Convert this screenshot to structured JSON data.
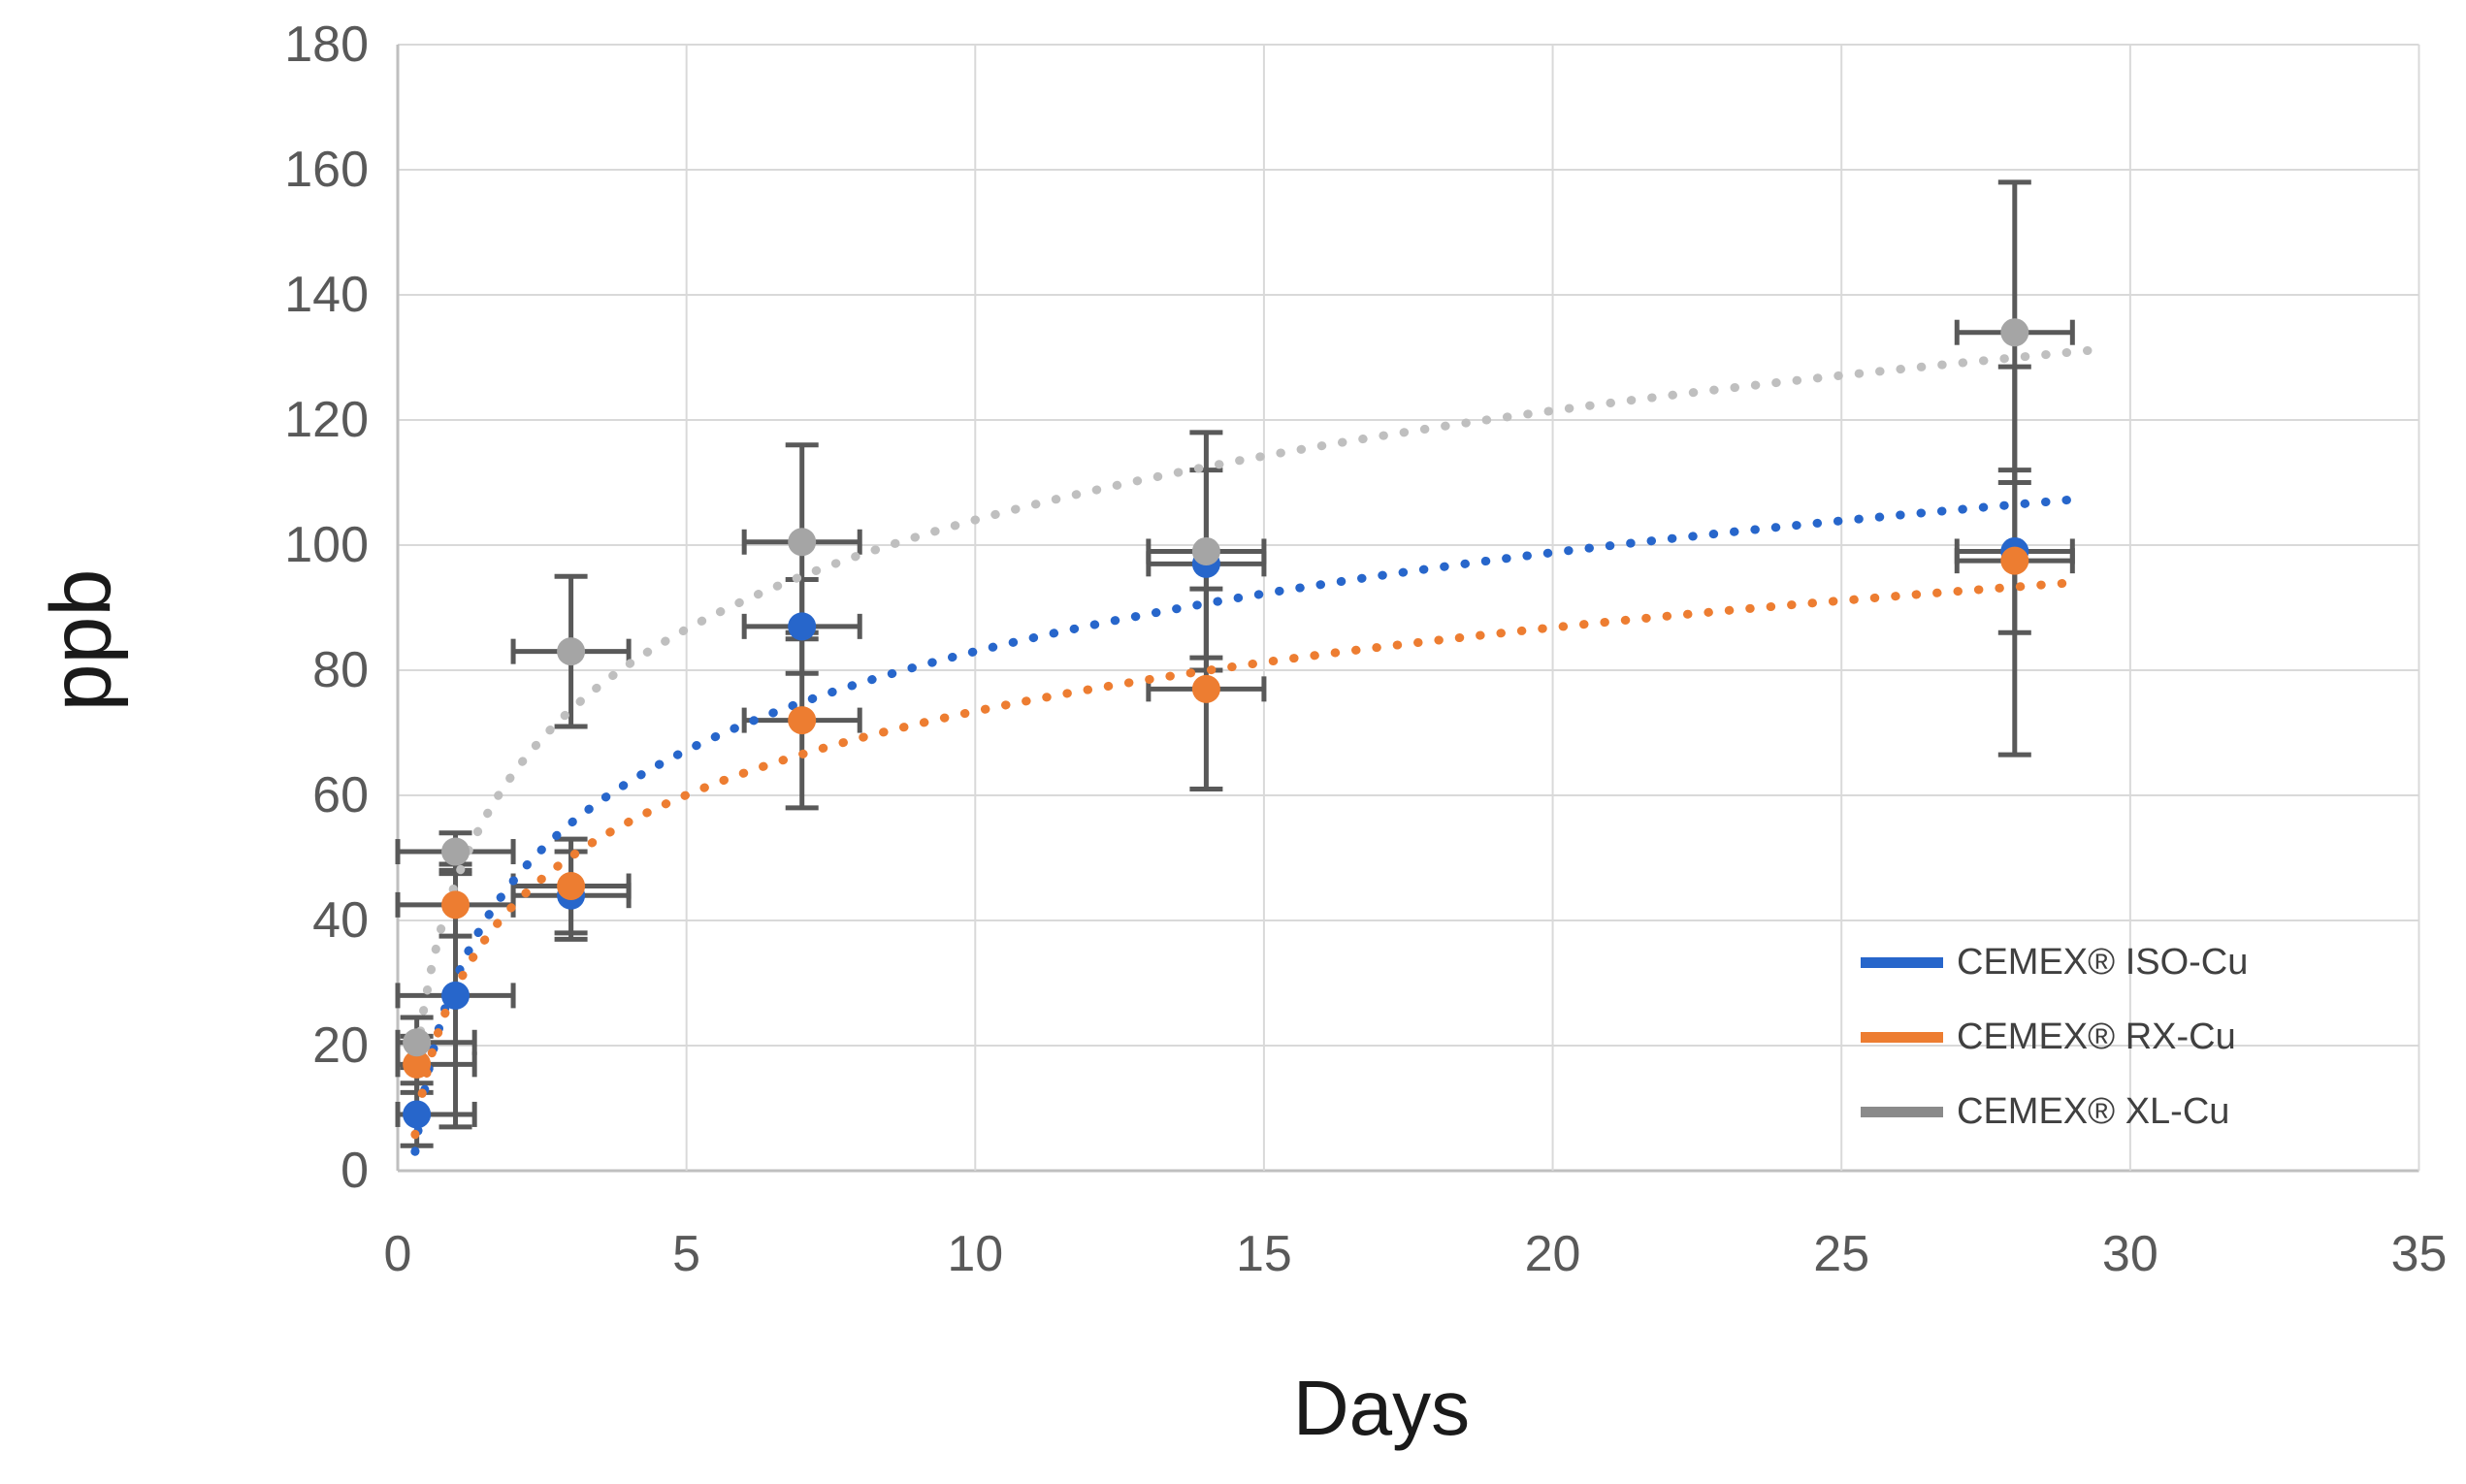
{
  "chart_data": {
    "type": "scatter",
    "title": "",
    "xlabel": "Days",
    "ylabel": "ppb",
    "xlim": [
      0,
      35
    ],
    "ylim": [
      0,
      180
    ],
    "xticks": [
      0,
      5,
      10,
      15,
      20,
      25,
      30,
      35
    ],
    "yticks": [
      0,
      20,
      40,
      60,
      80,
      100,
      120,
      140,
      160,
      180
    ],
    "grid": true,
    "legend_position": "middle-right",
    "colors": {
      "gridline": "#D9D9D9",
      "axis_line": "#BFBFBF",
      "tick_label": "#595959",
      "axis_title": "#1A1A1A",
      "error_bar": "#595959"
    },
    "series": [
      {
        "name": "CEMEX® ISO-Cu",
        "color": "#2766CB",
        "legend_color": "#2766CB",
        "trend_color": "#2766CB",
        "marker": "circle",
        "trend": {
          "type": "logarithmic",
          "a": 22.8,
          "b": 30.5,
          "x_range": [
            0.3,
            29
          ]
        },
        "points": [
          {
            "x": 0.33,
            "y": 9,
            "x_err": 1,
            "y_err": 5
          },
          {
            "x": 1,
            "y": 28,
            "x_err": 1,
            "y_err": 21
          },
          {
            "x": 3,
            "y": 44,
            "x_err": 1,
            "y_err": 7
          },
          {
            "x": 7,
            "y": 87,
            "x_err": 1,
            "y_err": 7.5
          },
          {
            "x": 14,
            "y": 97,
            "x_err": 1,
            "y_err": 15
          },
          {
            "x": 28,
            "y": 99,
            "x_err": 1,
            "y_err": 13
          }
        ]
      },
      {
        "name": "CEMEX® RX-Cu",
        "color": "#ED7D31",
        "legend_color": "#ED7D31",
        "trend_color": "#ED7D31",
        "marker": "circle",
        "trend": {
          "type": "logarithmic",
          "a": 19.3,
          "b": 29,
          "x_range": [
            0.3,
            29
          ]
        },
        "points": [
          {
            "x": 0.33,
            "y": 17,
            "x_err": 1,
            "y_err": 4.5
          },
          {
            "x": 1,
            "y": 42.5,
            "x_err": 1,
            "y_err": 5
          },
          {
            "x": 3,
            "y": 45.5,
            "x_err": 1,
            "y_err": 7.5
          },
          {
            "x": 7,
            "y": 72,
            "x_err": 1,
            "y_err": 14
          },
          {
            "x": 14,
            "y": 77,
            "x_err": 1,
            "y_err": 16
          },
          {
            "x": 28,
            "y": 97.5,
            "x_err": 1,
            "y_err": 31
          }
        ]
      },
      {
        "name": "CEMEX® XL-Cu",
        "color": "#A5A5A5",
        "legend_color": "#8A8A8A",
        "trend_color": "#BFBFBF",
        "marker": "circle",
        "trend": {
          "type": "logarithmic",
          "a": 25.2,
          "b": 46,
          "x_range": [
            0.3,
            29.3
          ]
        },
        "points": [
          {
            "x": 0.33,
            "y": 20.5,
            "x_err": 1,
            "y_err": 4
          },
          {
            "x": 1,
            "y": 51,
            "x_err": 1,
            "y_err": 3
          },
          {
            "x": 3,
            "y": 83,
            "x_err": 1,
            "y_err": 12
          },
          {
            "x": 7,
            "y": 100.5,
            "x_err": 1,
            "y_err": 15.5
          },
          {
            "x": 14,
            "y": 99,
            "x_err": 1,
            "y_err": 19
          },
          {
            "x": 28,
            "y": 134,
            "x_err": 1,
            "y_err": 24
          }
        ]
      }
    ]
  }
}
